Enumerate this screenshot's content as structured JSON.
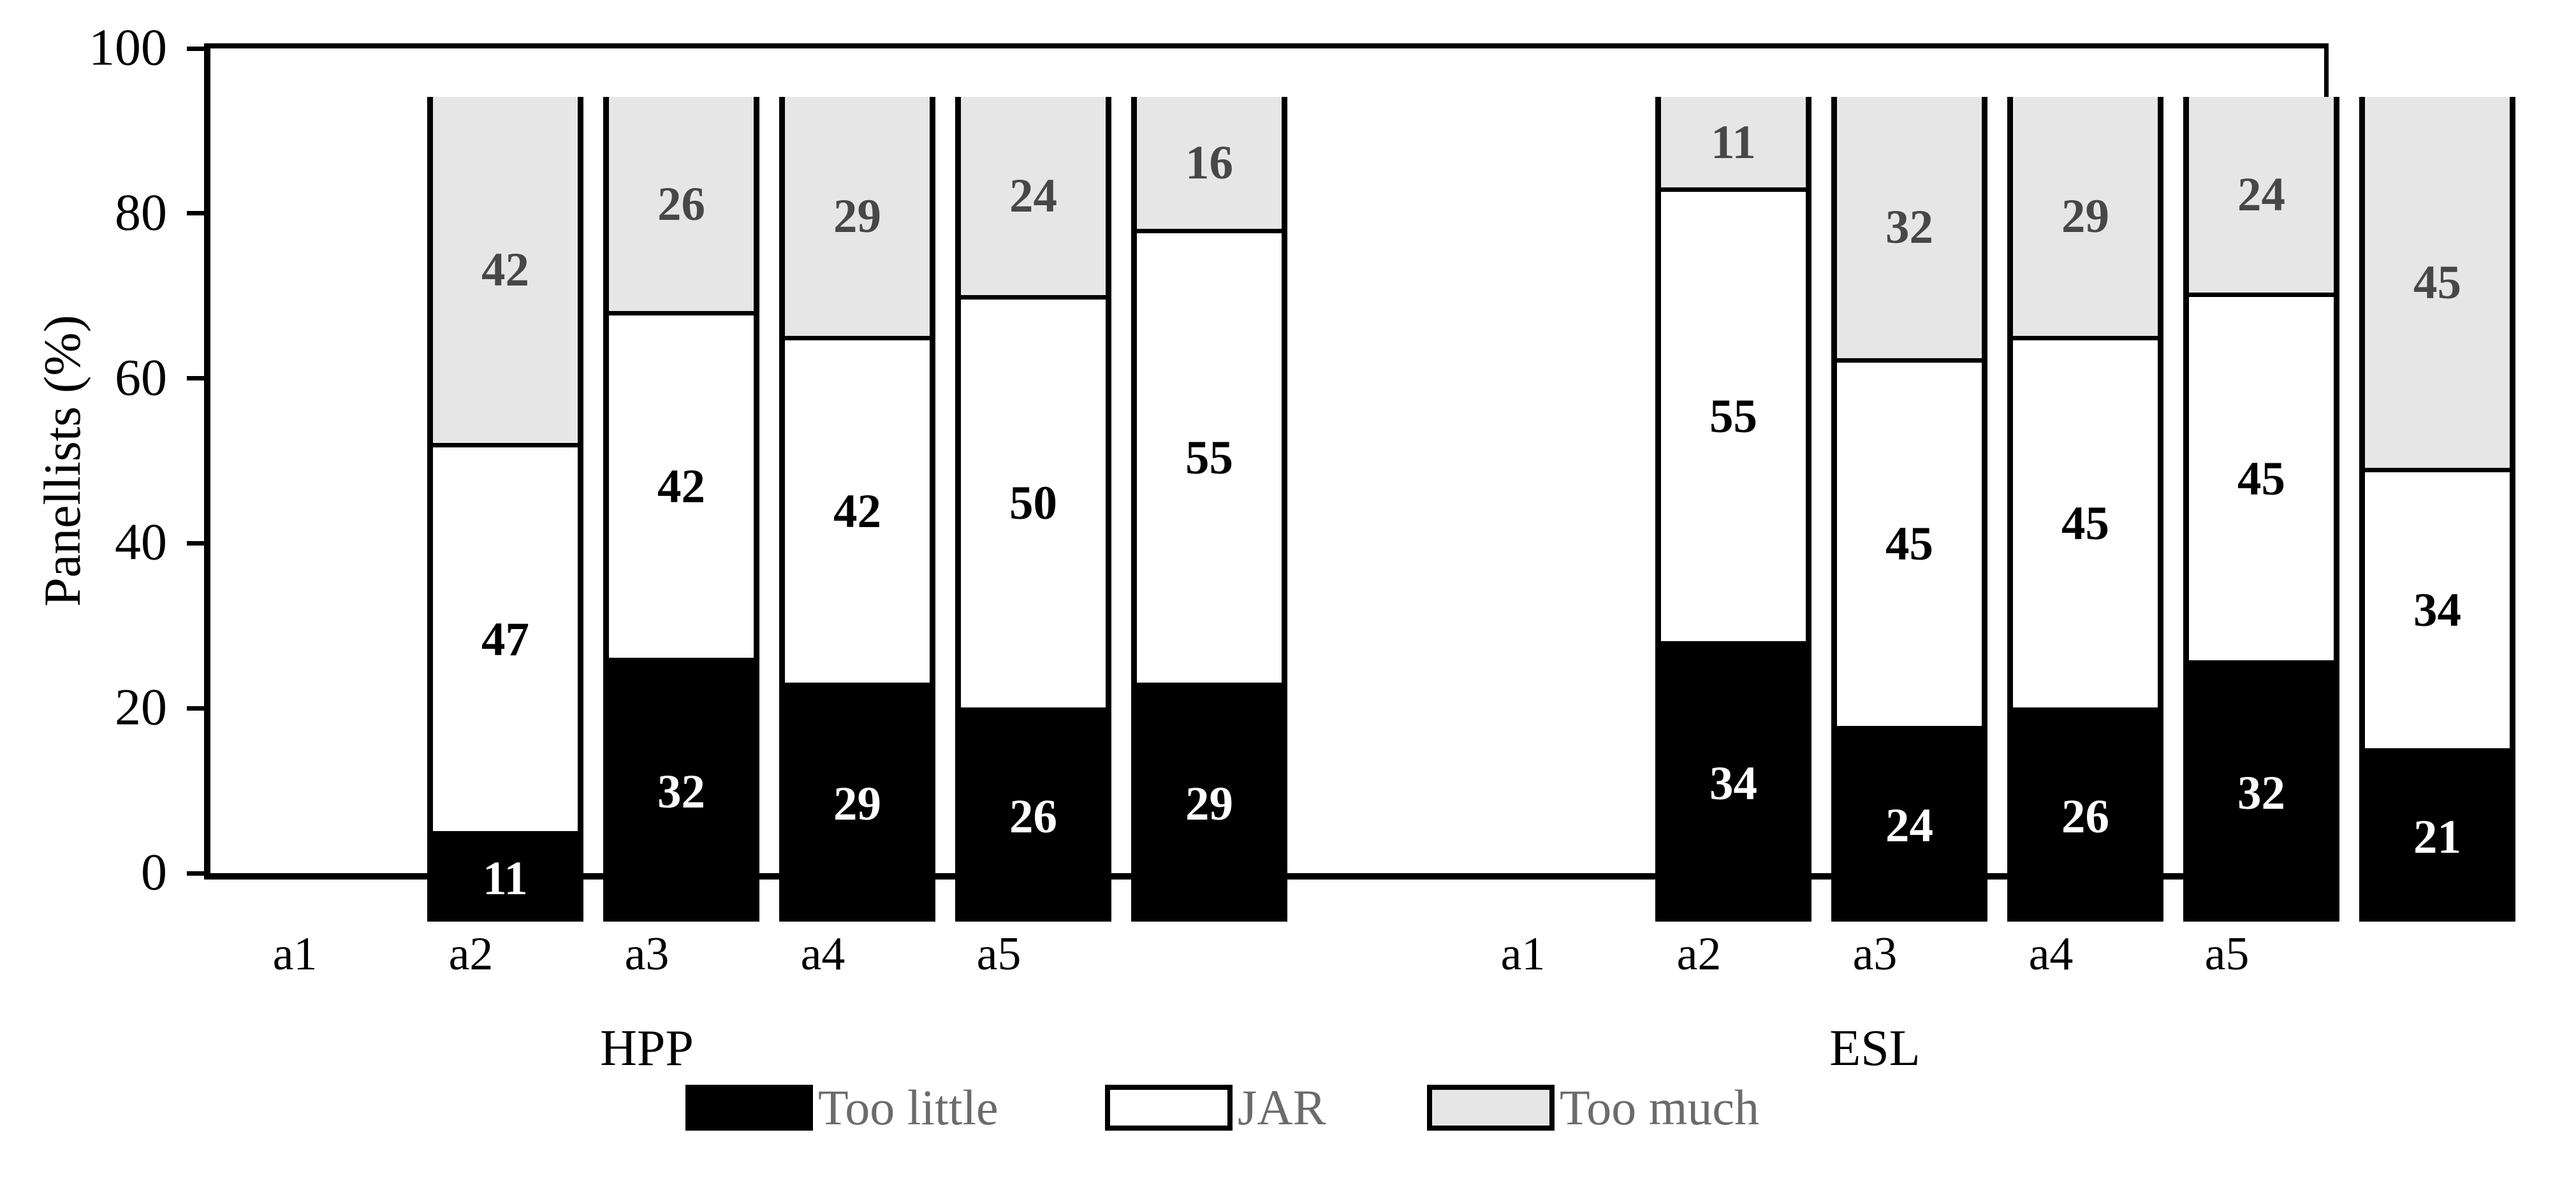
{
  "chart_data": {
    "type": "bar",
    "variant": "100-percent-stacked-column",
    "title": "",
    "ylabel": "Panellists (%)",
    "ylim": [
      0,
      100
    ],
    "yticks": [
      "0",
      "20",
      "40",
      "60",
      "80",
      "100"
    ],
    "grid": false,
    "legend_position": "bottom",
    "categories": [
      "a1",
      "a2",
      "a3",
      "a4",
      "a5"
    ],
    "series_order_bottom_to_top": [
      "Too little",
      "JAR",
      "Too much"
    ],
    "groups": [
      {
        "label": "HPP",
        "bars": [
          {
            "category": "a1",
            "too_little": 11,
            "jar": 47,
            "too_much": 42
          },
          {
            "category": "a2",
            "too_little": 32,
            "jar": 42,
            "too_much": 26
          },
          {
            "category": "a3",
            "too_little": 29,
            "jar": 42,
            "too_much": 29
          },
          {
            "category": "a4",
            "too_little": 26,
            "jar": 50,
            "too_much": 24
          },
          {
            "category": "a5",
            "too_little": 29,
            "jar": 55,
            "too_much": 16
          }
        ]
      },
      {
        "label": "ESL",
        "bars": [
          {
            "category": "a1",
            "too_little": 34,
            "jar": 55,
            "too_much": 11
          },
          {
            "category": "a2",
            "too_little": 24,
            "jar": 45,
            "too_much": 32
          },
          {
            "category": "a3",
            "too_little": 26,
            "jar": 45,
            "too_much": 29
          },
          {
            "category": "a4",
            "too_little": 32,
            "jar": 45,
            "too_much": 24
          },
          {
            "category": "a5",
            "too_little": 21,
            "jar": 34,
            "too_much": 45
          }
        ]
      }
    ],
    "legend": [
      {
        "label": "Too little",
        "fill": "#000000"
      },
      {
        "label": "JAR",
        "fill": "#ffffff"
      },
      {
        "label": "Too much",
        "fill": "#e6e6e6"
      }
    ],
    "colors": {
      "too_little_fill": "#000000",
      "jar_fill": "#ffffff",
      "too_much_fill": "#e6e6e6",
      "outline": "#000000",
      "value_on_black": "#ffffff",
      "value_on_white": "#000000",
      "value_on_gray": "#474747",
      "legend_text": "#6b6b6b",
      "axis_text": "#000000",
      "background": "#ffffff"
    }
  }
}
